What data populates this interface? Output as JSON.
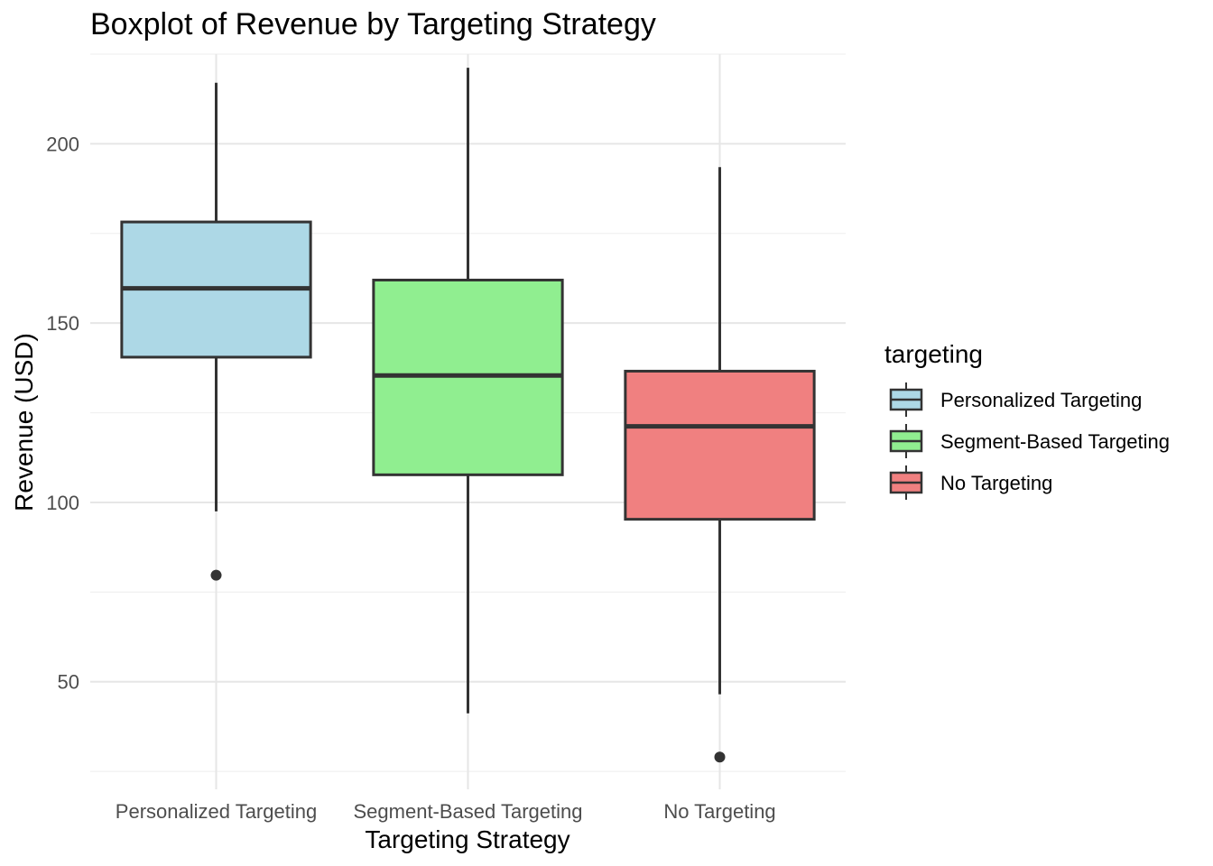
{
  "chart_data": {
    "type": "boxplot",
    "title": "Boxplot of Revenue by Targeting Strategy",
    "xlabel": "Targeting Strategy",
    "ylabel": "Revenue (USD)",
    "ylim": [
      20,
      225
    ],
    "yticks": [
      50,
      100,
      150,
      200
    ],
    "categories": [
      "Personalized Targeting",
      "Segment-Based Targeting",
      "No Targeting"
    ],
    "legend": {
      "title": "targeting",
      "position": "right"
    },
    "grid": true,
    "series": [
      {
        "name": "Personalized Targeting",
        "color": "#add8e6",
        "whisker_low": 97.5,
        "q1": 140.5,
        "median": 159.7,
        "q3": 178.2,
        "whisker_high": 217.0,
        "outliers": [
          79.7
        ]
      },
      {
        "name": "Segment-Based Targeting",
        "color": "#90ee90",
        "whisker_low": 41.2,
        "q1": 107.7,
        "median": 135.4,
        "q3": 162.0,
        "whisker_high": 221.2,
        "outliers": []
      },
      {
        "name": "No Targeting",
        "color": "#f08080",
        "whisker_low": 46.5,
        "q1": 95.3,
        "median": 121.2,
        "q3": 136.6,
        "whisker_high": 193.5,
        "outliers": [
          29.0
        ]
      }
    ]
  }
}
